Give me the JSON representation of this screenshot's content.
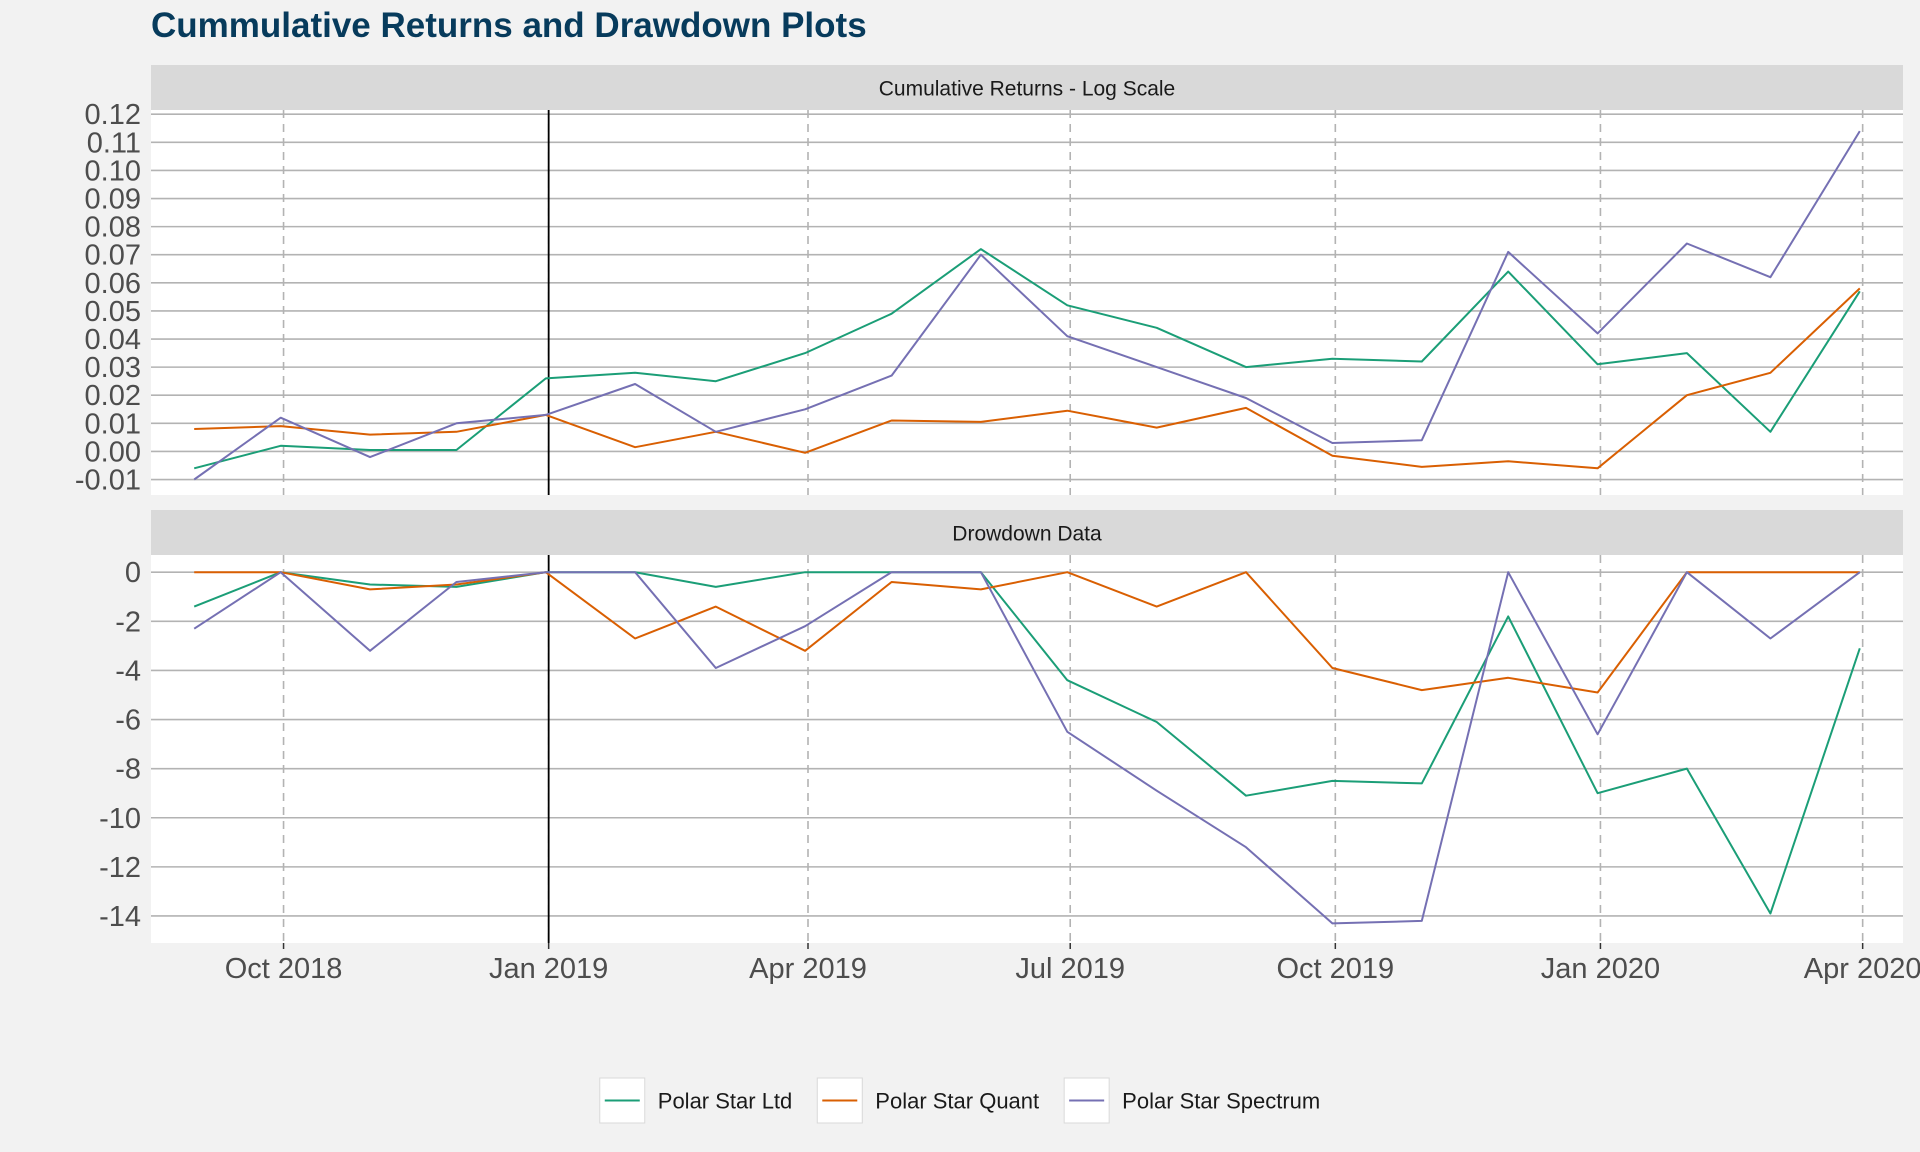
{
  "title": "Cummulative Returns and Drawdown Plots",
  "chart_data": {
    "type": "line",
    "x": [
      "2018-08-31",
      "2018-09-30",
      "2018-10-31",
      "2018-11-30",
      "2018-12-31",
      "2019-01-31",
      "2019-02-28",
      "2019-03-31",
      "2019-04-30",
      "2019-05-31",
      "2019-06-30",
      "2019-07-31",
      "2019-08-31",
      "2019-09-30",
      "2019-10-31",
      "2019-11-30",
      "2019-12-31",
      "2020-01-31",
      "2020-02-29",
      "2020-03-31"
    ],
    "x_tick_labels": [
      "Oct 2018",
      "Jan 2019",
      "Apr 2019",
      "Jul 2019",
      "Oct 2019",
      "Jan 2020",
      "Apr 2020"
    ],
    "x_tick_dates": [
      "2018-10-01",
      "2019-01-01",
      "2019-04-01",
      "2019-07-01",
      "2019-10-01",
      "2020-01-01",
      "2020-04-01"
    ],
    "event_line_date": "2019-01-01",
    "legend": {
      "position": "bottom"
    },
    "panels": [
      {
        "title": "Cumulative Returns - Log Scale",
        "ylim": [
          -0.0155,
          0.1215
        ],
        "y_ticks": [
          -0.01,
          0.0,
          0.01,
          0.02,
          0.03,
          0.04,
          0.05,
          0.06,
          0.07,
          0.08,
          0.09,
          0.1,
          0.11,
          0.12
        ],
        "y_tick_labels": [
          "-0.01",
          "0.00",
          "0.01",
          "0.02",
          "0.03",
          "0.04",
          "0.05",
          "0.06",
          "0.07",
          "0.08",
          "0.09",
          "0.10",
          "0.11",
          "0.12"
        ],
        "series": [
          {
            "name": "Polar Star Ltd",
            "values": [
              -0.006,
              0.002,
              0.0005,
              0.0005,
              0.026,
              0.028,
              0.025,
              0.035,
              0.049,
              0.072,
              0.052,
              0.044,
              0.03,
              0.033,
              0.032,
              0.064,
              0.031,
              0.035,
              0.007,
              0.057
            ]
          },
          {
            "name": "Polar Star Quant",
            "values": [
              0.008,
              0.009,
              0.006,
              0.007,
              0.013,
              0.0015,
              0.007,
              -0.0005,
              0.011,
              0.0105,
              0.0145,
              0.0085,
              0.0155,
              -0.0015,
              -0.0055,
              -0.0035,
              -0.006,
              0.02,
              0.028,
              0.058
            ]
          },
          {
            "name": "Polar Star Spectrum",
            "values": [
              -0.01,
              0.012,
              -0.002,
              0.01,
              0.013,
              0.024,
              0.007,
              0.015,
              0.027,
              0.07,
              0.041,
              0.03,
              0.019,
              0.003,
              0.004,
              0.071,
              0.042,
              0.074,
              0.062,
              0.114
            ]
          }
        ]
      },
      {
        "title": "Drowdown Data",
        "ylim": [
          -15.1,
          0.7
        ],
        "y_ticks": [
          0,
          -2,
          -4,
          -6,
          -8,
          -10,
          -12,
          -14
        ],
        "y_tick_labels": [
          "0",
          "-2",
          "-4",
          "-6",
          "-8",
          "-10",
          "-12",
          "-14"
        ],
        "series": [
          {
            "name": "Polar Star Ltd",
            "values": [
              -1.4,
              0,
              -0.5,
              -0.6,
              0,
              0,
              -0.6,
              0,
              0,
              0,
              -4.4,
              -6.1,
              -9.1,
              -8.5,
              -8.6,
              -1.8,
              -9.0,
              -8.0,
              -13.9,
              -3.1
            ]
          },
          {
            "name": "Polar Star Quant",
            "values": [
              0,
              0,
              -0.7,
              -0.5,
              0,
              -2.7,
              -1.4,
              -3.2,
              -0.4,
              -0.7,
              0,
              -1.4,
              0,
              -3.9,
              -4.8,
              -4.3,
              -4.9,
              0,
              0,
              0
            ]
          },
          {
            "name": "Polar Star Spectrum",
            "values": [
              -2.3,
              0,
              -3.2,
              -0.4,
              0,
              0,
              -3.9,
              -2.2,
              0,
              0,
              -6.5,
              -8.9,
              -11.2,
              -14.3,
              -14.2,
              0,
              -6.6,
              0,
              -2.7,
              0
            ]
          }
        ]
      }
    ],
    "series_colors": [
      "#1b9e77",
      "#d95f02",
      "#7570b3"
    ],
    "legend_entries": [
      "Polar Star Ltd",
      "Polar Star Quant",
      "Polar Star Spectrum"
    ]
  }
}
